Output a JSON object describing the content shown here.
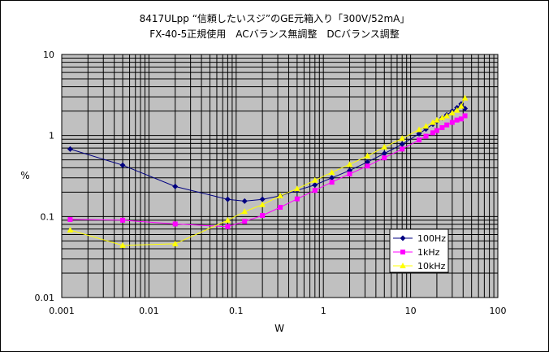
{
  "chart_data": {
    "type": "line",
    "title": "8417ULpp “信頼したいスジ”のGE元箱入り「300V/52mA」",
    "subtitle": "FX-40-5正規使用　ACバランス無調整　DCバランス調整",
    "xlabel": "W",
    "ylabel": "%",
    "xscale": "log",
    "yscale": "log",
    "xlim": [
      0.001,
      100
    ],
    "ylim": [
      0.01,
      10
    ],
    "x_ticks": [
      "0.001",
      "0.01",
      "0.1",
      "1",
      "10",
      "100"
    ],
    "y_ticks": [
      "10",
      "1",
      "0.1",
      "0.01"
    ],
    "grid": "on",
    "legend_position": "lower-right",
    "series": [
      {
        "name": "100Hz",
        "color": "#000080",
        "marker": "diamond",
        "x": [
          0.00125,
          0.005,
          0.02,
          0.08,
          0.125,
          0.2,
          0.32,
          0.5,
          0.8,
          1.25,
          2,
          3.2,
          5,
          8,
          12.5,
          15,
          18,
          20,
          23,
          26,
          30,
          34,
          38,
          42
        ],
        "y": [
          0.68,
          0.43,
          0.235,
          0.163,
          0.155,
          0.163,
          0.18,
          0.21,
          0.245,
          0.3,
          0.37,
          0.47,
          0.6,
          0.78,
          1.05,
          1.2,
          1.38,
          1.5,
          1.65,
          1.8,
          2.0,
          2.2,
          2.45,
          2.15
        ]
      },
      {
        "name": "1kHz",
        "color": "#ff00ff",
        "marker": "square",
        "x": [
          0.00125,
          0.005,
          0.02,
          0.08,
          0.125,
          0.2,
          0.32,
          0.5,
          0.8,
          1.25,
          2,
          3.2,
          5,
          8,
          12.5,
          15,
          18,
          20,
          23,
          26,
          30,
          34,
          38,
          42
        ],
        "y": [
          0.092,
          0.09,
          0.081,
          0.075,
          0.087,
          0.103,
          0.13,
          0.165,
          0.21,
          0.265,
          0.335,
          0.42,
          0.53,
          0.68,
          0.88,
          0.98,
          1.08,
          1.15,
          1.25,
          1.35,
          1.45,
          1.55,
          1.6,
          1.75
        ]
      },
      {
        "name": "10kHz",
        "color": "#ffff00",
        "marker": "triangle",
        "x": [
          0.00125,
          0.005,
          0.02,
          0.08,
          0.125,
          0.2,
          0.32,
          0.5,
          0.8,
          1.25,
          2,
          3.2,
          5,
          8,
          12.5,
          15,
          18,
          20,
          23,
          26,
          30,
          34,
          38,
          42
        ],
        "y": [
          0.068,
          0.044,
          0.046,
          0.09,
          0.115,
          0.14,
          0.18,
          0.22,
          0.28,
          0.35,
          0.44,
          0.56,
          0.72,
          0.92,
          1.18,
          1.3,
          1.45,
          1.55,
          1.65,
          1.75,
          1.9,
          2.05,
          2.3,
          2.9
        ]
      }
    ]
  }
}
